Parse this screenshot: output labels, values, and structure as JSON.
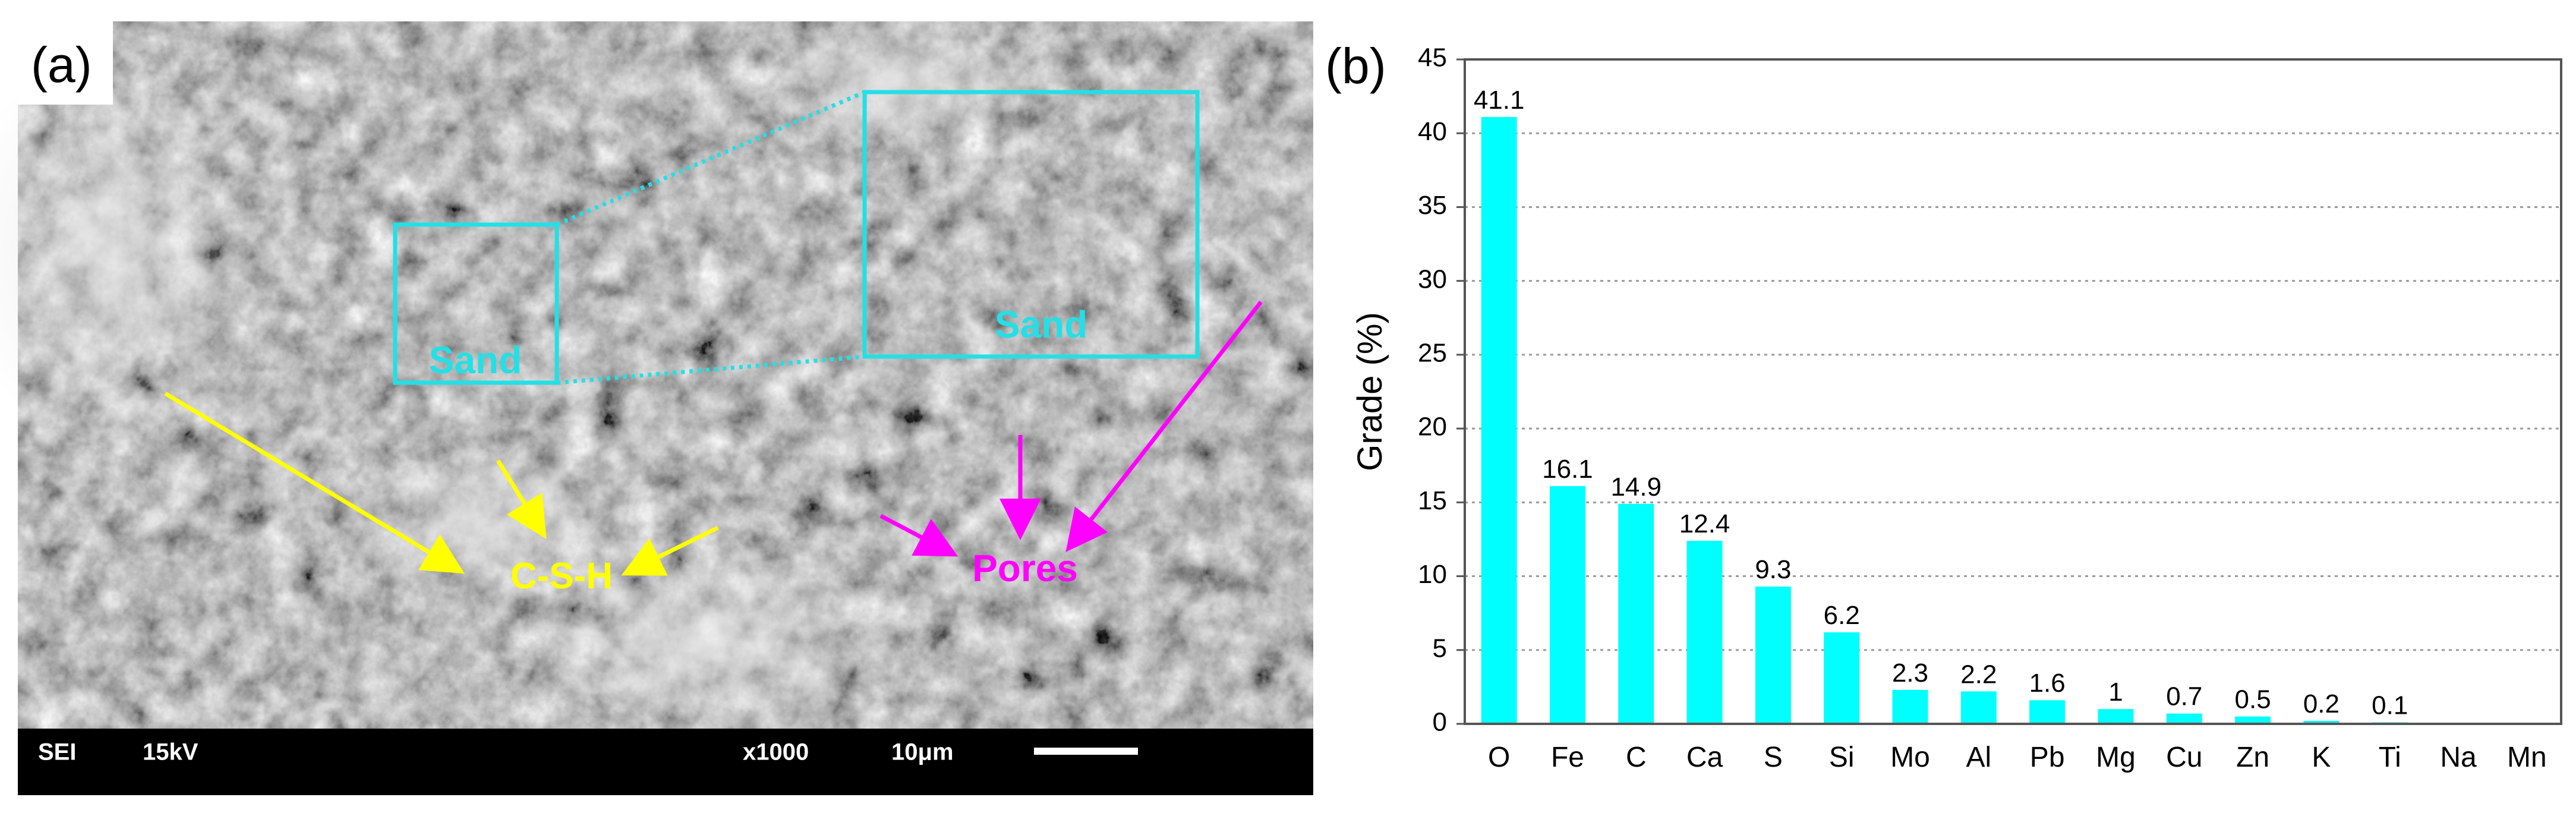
{
  "panel_a": {
    "label": "(a)",
    "annotations": {
      "sand_small": "Sand",
      "sand_large": "Sand",
      "csh": "C-S-H",
      "pores": "Pores"
    },
    "scale_bar": {
      "detector": "SEI",
      "voltage": "15kV",
      "magnification": "x1000",
      "scale": "10μm"
    },
    "colors": {
      "sand": "#22e0e6",
      "csh": "#ffff00",
      "pores": "#ff00ff",
      "info_bar": "#000000"
    }
  },
  "panel_b": {
    "label": "(b)"
  },
  "chart_data": {
    "type": "bar",
    "title": "",
    "xlabel": "",
    "ylabel": "Grade (%)",
    "ylim": [
      0,
      45
    ],
    "yticks": [
      0,
      5,
      10,
      15,
      20,
      25,
      30,
      35,
      40,
      45
    ],
    "grid": true,
    "categories": [
      "O",
      "Fe",
      "C",
      "Ca",
      "S",
      "Si",
      "Mo",
      "Al",
      "Pb",
      "Mg",
      "Cu",
      "Zn",
      "K",
      "Ti",
      "Na",
      "Mn"
    ],
    "values": [
      41.1,
      16.1,
      14.9,
      12.4,
      9.3,
      6.2,
      2.3,
      2.2,
      1.6,
      1,
      0.7,
      0.5,
      0.2,
      0.1,
      0,
      0
    ],
    "data_labels": [
      "41.1",
      "16.1",
      "14.9",
      "12.4",
      "9.3",
      "6.2",
      "2.3",
      "2.2",
      "1.6",
      "1",
      "0.7",
      "0.5",
      "0.2",
      "0.1",
      "",
      ""
    ],
    "bar_color": "#00ffff"
  }
}
